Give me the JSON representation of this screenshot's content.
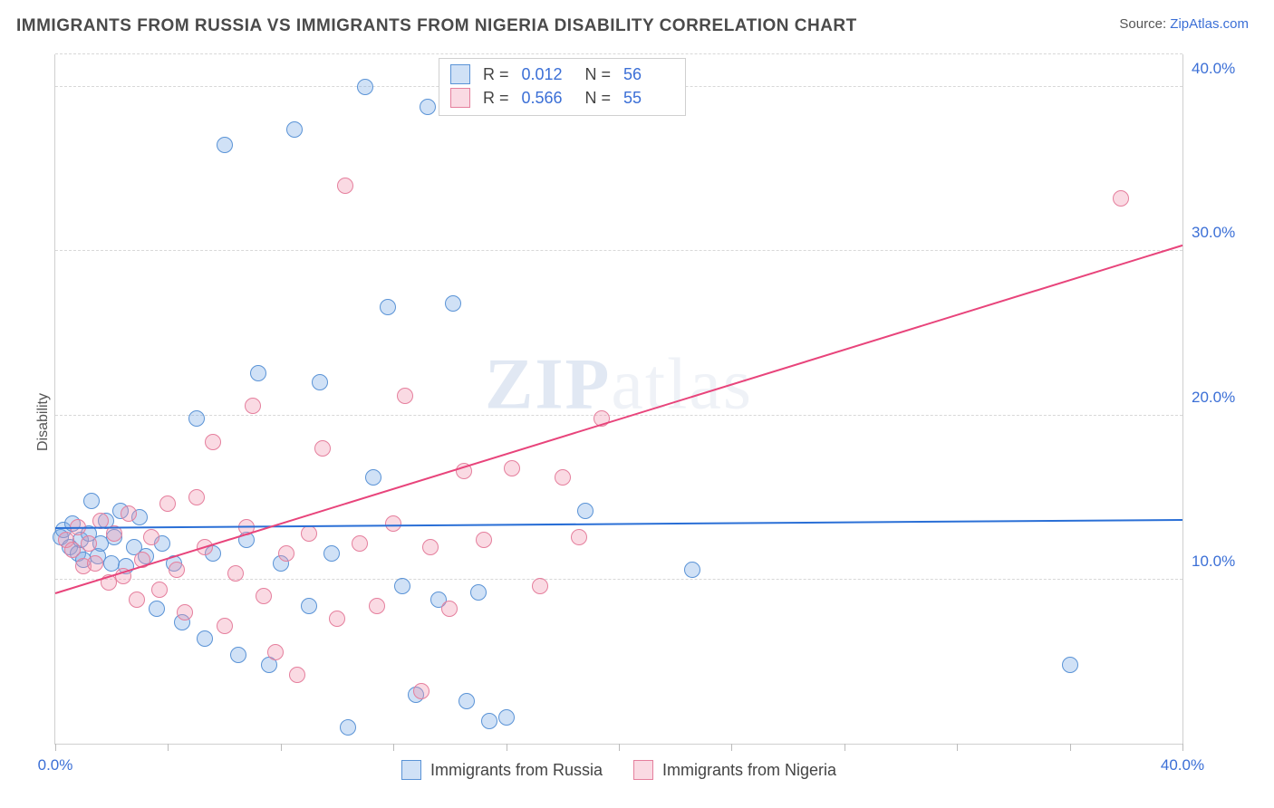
{
  "title": "IMMIGRANTS FROM RUSSIA VS IMMIGRANTS FROM NIGERIA DISABILITY CORRELATION CHART",
  "source_prefix": "Source: ",
  "source_link": "ZipAtlas.com",
  "ylabel": "Disability",
  "watermark_a": "ZIP",
  "watermark_b": "atlas",
  "chart": {
    "type": "scatter",
    "xlim": [
      0,
      40
    ],
    "ylim": [
      0,
      42
    ],
    "y_gridlines": [
      10,
      20,
      30,
      40
    ],
    "y_tick_labels": [
      "10.0%",
      "20.0%",
      "30.0%",
      "40.0%"
    ],
    "x_ticks": [
      0,
      4,
      8,
      12,
      16,
      20,
      24,
      28,
      32,
      36,
      40
    ],
    "x_tick_labels_shown": {
      "0": "0.0%",
      "40": "40.0%"
    },
    "background_color": "#ffffff",
    "grid_color": "#d8d8d8",
    "marker_radius": 9,
    "marker_border_width": 1.4,
    "series": [
      {
        "name": "Immigrants from Russia",
        "fill": "rgba(120,170,230,0.35)",
        "stroke": "#5a93d6",
        "trend": {
          "y_at_x0": 13.2,
          "y_at_xmax": 13.7,
          "color": "#2a6fd6",
          "width": 2.3
        },
        "R": "0.012",
        "N": "56",
        "points": [
          [
            0.2,
            12.6
          ],
          [
            0.3,
            13.0
          ],
          [
            0.5,
            12.0
          ],
          [
            0.6,
            13.4
          ],
          [
            0.8,
            11.6
          ],
          [
            0.9,
            12.4
          ],
          [
            1.0,
            11.2
          ],
          [
            1.2,
            12.8
          ],
          [
            1.3,
            14.8
          ],
          [
            1.5,
            11.4
          ],
          [
            1.6,
            12.2
          ],
          [
            1.8,
            13.6
          ],
          [
            2.0,
            11.0
          ],
          [
            2.1,
            12.6
          ],
          [
            2.3,
            14.2
          ],
          [
            2.5,
            10.8
          ],
          [
            2.8,
            12.0
          ],
          [
            3.0,
            13.8
          ],
          [
            3.2,
            11.4
          ],
          [
            3.6,
            8.2
          ],
          [
            3.8,
            12.2
          ],
          [
            4.2,
            11.0
          ],
          [
            4.5,
            7.4
          ],
          [
            5.0,
            19.8
          ],
          [
            5.3,
            6.4
          ],
          [
            5.6,
            11.6
          ],
          [
            6.0,
            36.5
          ],
          [
            6.5,
            5.4
          ],
          [
            6.8,
            12.4
          ],
          [
            7.2,
            22.6
          ],
          [
            7.6,
            4.8
          ],
          [
            8.0,
            11.0
          ],
          [
            8.5,
            37.4
          ],
          [
            9.0,
            8.4
          ],
          [
            9.4,
            22.0
          ],
          [
            9.8,
            11.6
          ],
          [
            10.4,
            1.0
          ],
          [
            11.0,
            40.0
          ],
          [
            11.3,
            16.2
          ],
          [
            11.8,
            26.6
          ],
          [
            12.3,
            9.6
          ],
          [
            12.8,
            3.0
          ],
          [
            13.2,
            38.8
          ],
          [
            13.6,
            8.8
          ],
          [
            14.1,
            26.8
          ],
          [
            14.6,
            2.6
          ],
          [
            15.0,
            9.2
          ],
          [
            15.4,
            1.4
          ],
          [
            16.0,
            1.6
          ],
          [
            18.8,
            14.2
          ],
          [
            22.6,
            10.6
          ],
          [
            36.0,
            4.8
          ]
        ]
      },
      {
        "name": "Immigrants from Nigeria",
        "fill": "rgba(240,150,175,0.35)",
        "stroke": "#e57f9d",
        "trend": {
          "y_at_x0": 9.2,
          "y_at_xmax": 30.4,
          "color": "#e8447b",
          "width": 2.0
        },
        "R": "0.566",
        "N": "55",
        "points": [
          [
            0.4,
            12.4
          ],
          [
            0.6,
            11.8
          ],
          [
            0.8,
            13.2
          ],
          [
            1.0,
            10.8
          ],
          [
            1.2,
            12.2
          ],
          [
            1.4,
            11.0
          ],
          [
            1.6,
            13.6
          ],
          [
            1.9,
            9.8
          ],
          [
            2.1,
            12.8
          ],
          [
            2.4,
            10.2
          ],
          [
            2.6,
            14.0
          ],
          [
            2.9,
            8.8
          ],
          [
            3.1,
            11.2
          ],
          [
            3.4,
            12.6
          ],
          [
            3.7,
            9.4
          ],
          [
            4.0,
            14.6
          ],
          [
            4.3,
            10.6
          ],
          [
            4.6,
            8.0
          ],
          [
            5.0,
            15.0
          ],
          [
            5.3,
            12.0
          ],
          [
            5.6,
            18.4
          ],
          [
            6.0,
            7.2
          ],
          [
            6.4,
            10.4
          ],
          [
            6.8,
            13.2
          ],
          [
            7.0,
            20.6
          ],
          [
            7.4,
            9.0
          ],
          [
            7.8,
            5.6
          ],
          [
            8.2,
            11.6
          ],
          [
            8.6,
            4.2
          ],
          [
            9.0,
            12.8
          ],
          [
            9.5,
            18.0
          ],
          [
            10.0,
            7.6
          ],
          [
            10.3,
            34.0
          ],
          [
            10.8,
            12.2
          ],
          [
            11.4,
            8.4
          ],
          [
            12.0,
            13.4
          ],
          [
            12.4,
            21.2
          ],
          [
            13.0,
            3.2
          ],
          [
            13.3,
            12.0
          ],
          [
            14.0,
            8.2
          ],
          [
            14.5,
            16.6
          ],
          [
            15.2,
            12.4
          ],
          [
            16.2,
            16.8
          ],
          [
            17.2,
            9.6
          ],
          [
            18.0,
            16.2
          ],
          [
            18.6,
            12.6
          ],
          [
            19.4,
            19.8
          ],
          [
            37.8,
            33.2
          ]
        ]
      }
    ]
  },
  "legend_top": [
    {
      "swatch_series": 0,
      "R_label": "R =",
      "N_label": "N ="
    },
    {
      "swatch_series": 1,
      "R_label": "R =",
      "N_label": "N ="
    }
  ],
  "legend_bottom": [
    {
      "series": 0
    },
    {
      "series": 1
    }
  ]
}
